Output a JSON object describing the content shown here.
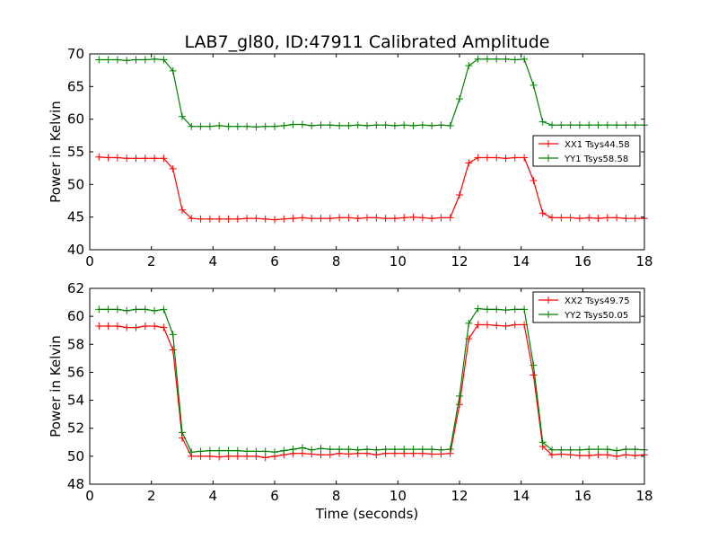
{
  "title": "LAB7_gl80, ID:47911 Calibrated Amplitude",
  "xlabel": "Time (seconds)",
  "colors": {
    "xx": "#ff0000",
    "yy": "#008000"
  },
  "chart_data": [
    {
      "type": "line",
      "title": "LAB7_gl80, ID:47911 Calibrated Amplitude",
      "xlabel": "",
      "ylabel": "Power in Kelvin",
      "xlim": [
        0,
        18
      ],
      "ylim": [
        40,
        70
      ],
      "xticks": [
        0,
        2,
        4,
        6,
        8,
        10,
        12,
        14,
        16,
        18
      ],
      "yticks": [
        40,
        45,
        50,
        55,
        60,
        65,
        70
      ],
      "grid": false,
      "legend": "center-right",
      "x": [
        0.3,
        0.6,
        0.9,
        1.2,
        1.5,
        1.8,
        2.1,
        2.4,
        2.7,
        3.0,
        3.3,
        3.6,
        3.9,
        4.2,
        4.5,
        4.8,
        5.1,
        5.4,
        5.7,
        6.0,
        6.3,
        6.6,
        6.9,
        7.2,
        7.5,
        7.8,
        8.1,
        8.4,
        8.7,
        9.0,
        9.3,
        9.6,
        9.9,
        10.2,
        10.5,
        10.8,
        11.1,
        11.4,
        11.7,
        12.0,
        12.3,
        12.6,
        12.9,
        13.2,
        13.5,
        13.8,
        14.1,
        14.4,
        14.7,
        15.0,
        15.3,
        15.6,
        15.9,
        16.2,
        16.5,
        16.8,
        17.1,
        17.4,
        17.7,
        18.0
      ],
      "series": [
        {
          "name": "XX1 Tsys44.58",
          "color": "#ff0000",
          "values": [
            54.2,
            54.1,
            54.1,
            54.0,
            54.0,
            54.0,
            54.0,
            54.0,
            52.4,
            46.1,
            44.8,
            44.7,
            44.7,
            44.7,
            44.7,
            44.7,
            44.8,
            44.8,
            44.7,
            44.6,
            44.7,
            44.8,
            44.9,
            44.8,
            44.8,
            44.8,
            44.9,
            44.9,
            44.8,
            44.9,
            44.9,
            44.8,
            44.8,
            44.9,
            45.0,
            44.9,
            44.8,
            44.9,
            44.9,
            48.4,
            53.3,
            54.1,
            54.1,
            54.1,
            54.0,
            54.1,
            54.1,
            50.6,
            45.6,
            44.9,
            44.9,
            44.9,
            44.8,
            44.9,
            44.8,
            44.9,
            44.9,
            44.8,
            44.8,
            44.8
          ]
        },
        {
          "name": "YY1 Tsys58.58",
          "color": "#008000",
          "values": [
            69.1,
            69.1,
            69.1,
            69.0,
            69.1,
            69.1,
            69.2,
            69.1,
            67.4,
            60.4,
            58.9,
            58.9,
            58.9,
            59.0,
            58.9,
            58.9,
            58.9,
            58.8,
            58.9,
            58.9,
            59.0,
            59.2,
            59.2,
            59.0,
            59.1,
            59.1,
            59.0,
            59.0,
            59.1,
            59.0,
            59.1,
            59.1,
            59.0,
            59.1,
            59.0,
            59.1,
            59.0,
            59.1,
            59.0,
            63.1,
            68.2,
            69.2,
            69.2,
            69.2,
            69.2,
            69.1,
            69.2,
            65.2,
            59.6,
            59.1,
            59.1,
            59.1,
            59.1,
            59.1,
            59.1,
            59.1,
            59.1,
            59.1,
            59.1,
            59.1
          ]
        }
      ]
    },
    {
      "type": "line",
      "title": "",
      "xlabel": "Time (seconds)",
      "ylabel": "Power in Kelvin",
      "xlim": [
        0,
        18
      ],
      "ylim": [
        48,
        62
      ],
      "xticks": [
        0,
        2,
        4,
        6,
        8,
        10,
        12,
        14,
        16,
        18
      ],
      "yticks": [
        48,
        50,
        52,
        54,
        56,
        58,
        60,
        62
      ],
      "grid": false,
      "legend": "top-right",
      "x": [
        0.3,
        0.6,
        0.9,
        1.2,
        1.5,
        1.8,
        2.1,
        2.4,
        2.7,
        3.0,
        3.3,
        3.6,
        3.9,
        4.2,
        4.5,
        4.8,
        5.1,
        5.4,
        5.7,
        6.0,
        6.3,
        6.6,
        6.9,
        7.2,
        7.5,
        7.8,
        8.1,
        8.4,
        8.7,
        9.0,
        9.3,
        9.6,
        9.9,
        10.2,
        10.5,
        10.8,
        11.1,
        11.4,
        11.7,
        12.0,
        12.3,
        12.6,
        12.9,
        13.2,
        13.5,
        13.8,
        14.1,
        14.4,
        14.7,
        15.0,
        15.3,
        15.6,
        15.9,
        16.2,
        16.5,
        16.8,
        17.1,
        17.4,
        17.7,
        18.0
      ],
      "series": [
        {
          "name": "XX2 Tsys49.75",
          "color": "#ff0000",
          "values": [
            59.3,
            59.3,
            59.3,
            59.2,
            59.2,
            59.3,
            59.3,
            59.2,
            57.6,
            51.3,
            50.0,
            50.0,
            50.0,
            49.95,
            50.0,
            50.0,
            50.0,
            50.0,
            49.9,
            50.0,
            50.1,
            50.2,
            50.2,
            50.15,
            50.1,
            50.1,
            50.2,
            50.15,
            50.2,
            50.2,
            50.1,
            50.2,
            50.2,
            50.2,
            50.2,
            50.2,
            50.15,
            50.15,
            50.2,
            53.7,
            58.4,
            59.4,
            59.4,
            59.35,
            59.3,
            59.4,
            59.4,
            55.8,
            50.7,
            50.1,
            50.15,
            50.1,
            50.05,
            50.05,
            50.1,
            50.1,
            50.0,
            50.1,
            50.05,
            50.1
          ]
        },
        {
          "name": "YY2 Tsys50.05",
          "color": "#008000",
          "values": [
            60.5,
            60.5,
            60.5,
            60.4,
            60.5,
            60.5,
            60.4,
            60.5,
            58.7,
            51.7,
            50.3,
            50.35,
            50.4,
            50.4,
            50.4,
            50.4,
            50.35,
            50.35,
            50.35,
            50.3,
            50.4,
            50.5,
            50.6,
            50.45,
            50.55,
            50.5,
            50.5,
            50.5,
            50.45,
            50.5,
            50.45,
            50.5,
            50.5,
            50.5,
            50.5,
            50.5,
            50.5,
            50.45,
            50.5,
            54.3,
            59.5,
            60.55,
            60.5,
            60.5,
            60.45,
            60.5,
            60.5,
            56.5,
            51.0,
            50.45,
            50.45,
            50.45,
            50.45,
            50.5,
            50.5,
            50.5,
            50.4,
            50.5,
            50.5,
            50.45
          ]
        }
      ]
    }
  ]
}
